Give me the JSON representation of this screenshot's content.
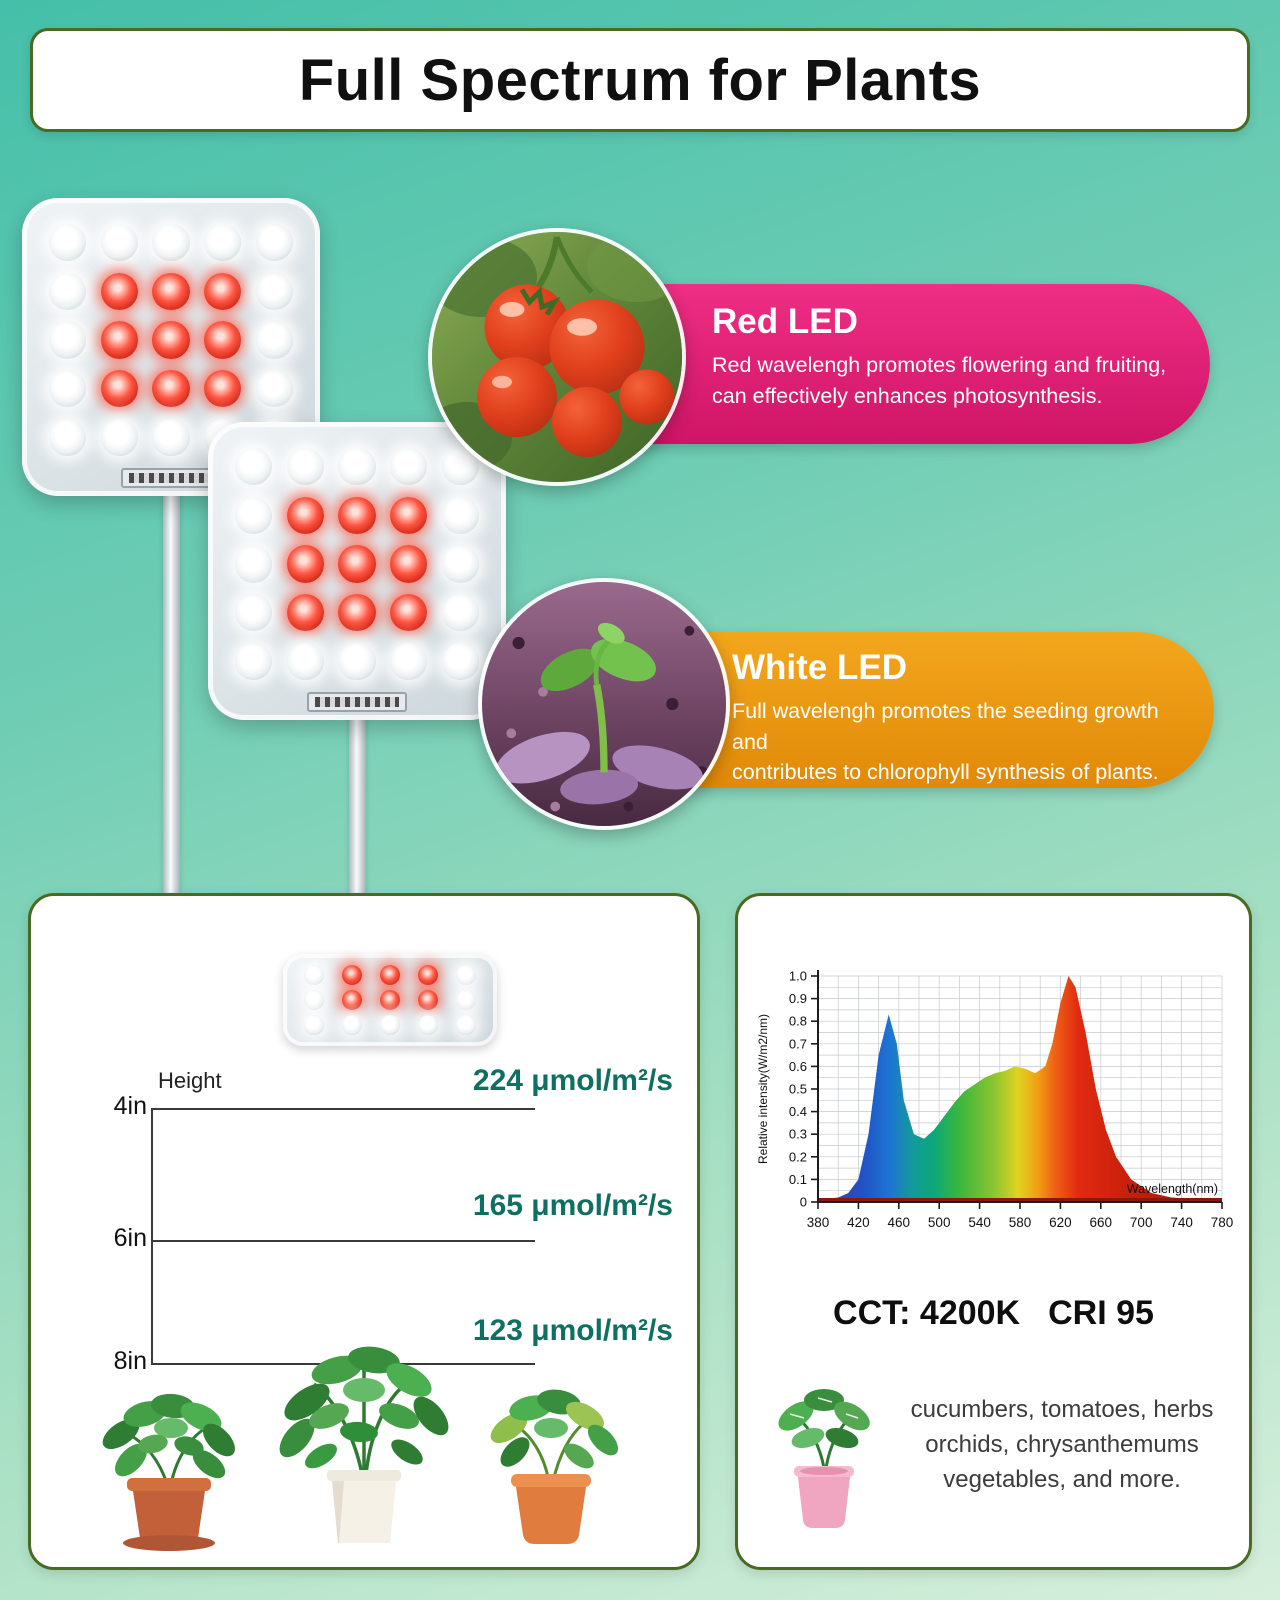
{
  "title": {
    "text": "Full Spectrum for Plants"
  },
  "callouts": {
    "red": {
      "heading": "Red LED",
      "line1": "Red wavelengh promotes flowering and fruiting,",
      "line2": "can effectively enhances photosynthesis."
    },
    "white": {
      "heading": "White LED",
      "line1": "Full wavelengh promotes the seeding growth and",
      "line2": "contributes to chlorophyll synthesis of plants."
    }
  },
  "led_panels": {
    "main_pattern": [
      "WWWWW",
      "WRRRW",
      "WRRRW",
      "WRRRW",
      "WWWWW"
    ],
    "mini_pattern": [
      "WRRRW",
      "WRRRW",
      "WWWWW"
    ]
  },
  "height_card": {
    "axis_label": "Height",
    "rows": [
      {
        "height": "4in",
        "ppfd": "224 μmol/m²/s"
      },
      {
        "height": "6in",
        "ppfd": "165 μmol/m²/s"
      },
      {
        "height": "8in",
        "ppfd": "123 μmol/m²/s"
      }
    ]
  },
  "spec_card": {
    "cct": "CCT: 4200K",
    "cri": "CRI 95",
    "plants_line1": "cucumbers, tomatoes, herbs",
    "plants_line2": "orchids, chrysanthemums",
    "plants_line3": "vegetables, and more."
  },
  "colors": {
    "red_ribbon": "#e8227b",
    "orange_ribbon": "#efa013",
    "card_border_green": "#486b21",
    "ppfd_value_green": "#0e7060",
    "led_red": "#e03020",
    "spectrum_baseline": "#8c150c"
  },
  "chart_data": {
    "type": "area",
    "title": "",
    "xlabel": "Wavelength(nm)",
    "ylabel": "Relative intensity(W/m2/nm)",
    "xlim": [
      380,
      780
    ],
    "ylim": [
      0,
      1.0
    ],
    "x_ticks": [
      380,
      420,
      460,
      500,
      540,
      580,
      620,
      660,
      700,
      740,
      780
    ],
    "y_ticks": [
      0,
      0.1,
      0.2,
      0.3,
      0.4,
      0.5,
      0.6,
      0.7,
      0.8,
      0.9,
      1.0
    ],
    "grid": true,
    "legend": false,
    "series": [
      {
        "name": "relative-intensity",
        "x": [
          380,
          400,
          410,
          420,
          430,
          440,
          450,
          458,
          465,
          475,
          485,
          495,
          505,
          515,
          525,
          535,
          545,
          555,
          565,
          575,
          585,
          595,
          605,
          612,
          620,
          628,
          635,
          645,
          655,
          665,
          675,
          690,
          710,
          730,
          760,
          780
        ],
        "y": [
          0.01,
          0.02,
          0.04,
          0.1,
          0.3,
          0.65,
          0.83,
          0.7,
          0.45,
          0.3,
          0.28,
          0.32,
          0.38,
          0.44,
          0.49,
          0.52,
          0.55,
          0.57,
          0.58,
          0.6,
          0.59,
          0.57,
          0.6,
          0.7,
          0.88,
          1.0,
          0.95,
          0.75,
          0.5,
          0.32,
          0.2,
          0.1,
          0.04,
          0.02,
          0.01,
          0.01
        ]
      }
    ]
  }
}
